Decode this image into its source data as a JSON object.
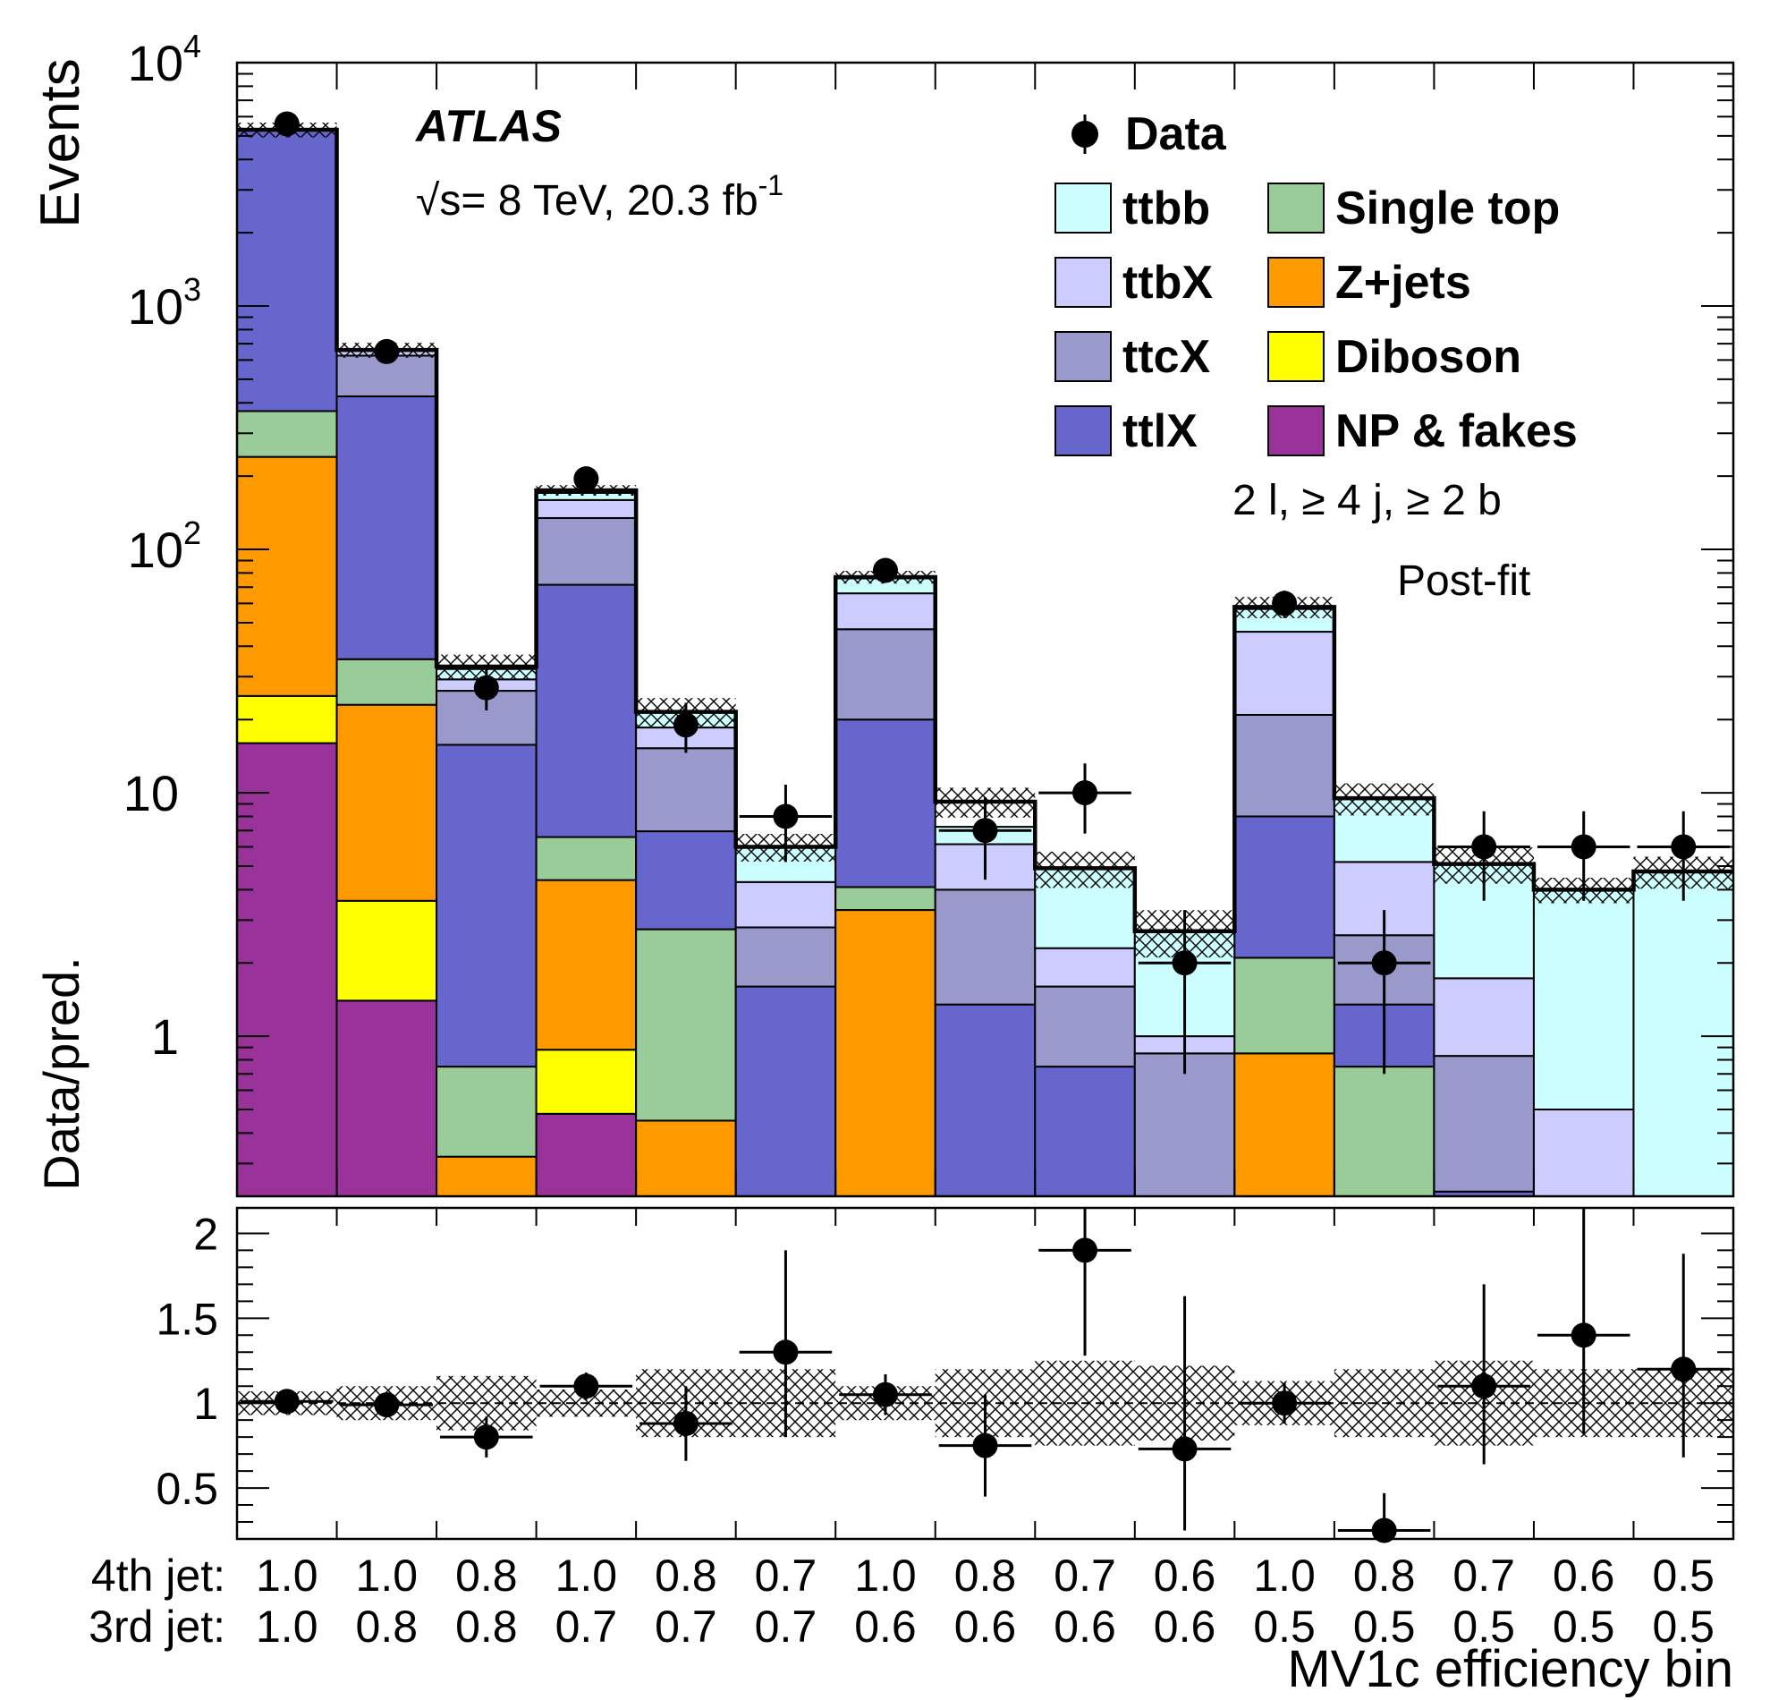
{
  "chart_data": {
    "type": "bar",
    "stacked": true,
    "experiment": "ATLAS",
    "energy_label": "√s= 8 TeV, 20.3 fb",
    "energy_sup": "-1",
    "selection": "2 l, ≥ 4 j, ≥ 2 b",
    "fit_label": "Post-fit",
    "ylabel": "Events",
    "ratio_ylabel": "Data/pred.",
    "xlabel": "MV1c efficiency bin",
    "yscale": "log",
    "ylim": [
      0.22,
      10000
    ],
    "ratio_ylim": [
      0.2,
      2.15
    ],
    "y_ticks": [
      {
        "value": 10000,
        "base": "10",
        "exp": "4"
      },
      {
        "value": 1000,
        "base": "10",
        "exp": "3"
      },
      {
        "value": 100,
        "base": "10",
        "exp": "2"
      },
      {
        "value": 10,
        "base": "10",
        "exp": ""
      },
      {
        "value": 1,
        "base": "1",
        "exp": ""
      }
    ],
    "ratio_ticks": [
      {
        "value": 0.5,
        "label": "0.5"
      },
      {
        "value": 1.0,
        "label": "1"
      },
      {
        "value": 1.5,
        "label": "1.5"
      },
      {
        "value": 2.0,
        "label": "2"
      }
    ],
    "row_labels": {
      "fourth": "4th jet:",
      "third": "3rd jet:"
    },
    "bins_4th": [
      "1.0",
      "1.0",
      "0.8",
      "1.0",
      "0.8",
      "0.7",
      "1.0",
      "0.8",
      "0.7",
      "0.6",
      "1.0",
      "0.8",
      "0.7",
      "0.6",
      "0.5"
    ],
    "bins_3rd": [
      "1.0",
      "0.8",
      "0.8",
      "0.7",
      "0.7",
      "0.7",
      "0.6",
      "0.6",
      "0.6",
      "0.6",
      "0.5",
      "0.5",
      "0.5",
      "0.5",
      "0.5"
    ],
    "series": [
      {
        "name": "NP & fakes",
        "color": "#993399",
        "values": [
          16,
          1.4,
          0,
          0.48,
          0,
          0,
          0,
          0,
          0,
          0,
          0,
          0,
          0,
          0,
          0
        ]
      },
      {
        "name": "Diboson",
        "color": "#ffff00",
        "values": [
          9,
          2.2,
          0,
          0.4,
          0,
          0,
          0,
          0,
          0,
          0,
          0,
          0,
          0,
          0,
          0
        ]
      },
      {
        "name": "Z+jets",
        "color": "#ff9900",
        "values": [
          215,
          19.4,
          0.32,
          3.5,
          0.45,
          0,
          3.3,
          0,
          0,
          0,
          0.85,
          0,
          0,
          0,
          0
        ]
      },
      {
        "name": "Single top",
        "color": "#99cc99",
        "values": [
          130,
          12.4,
          0.43,
          2.2,
          2.3,
          0,
          0.8,
          0,
          0,
          0,
          1.25,
          0.75,
          0,
          0,
          0
        ]
      },
      {
        "name": "ttlX",
        "color": "#6666cc",
        "values": [
          4900,
          390,
          15,
          65,
          4.2,
          1.6,
          15.9,
          1.35,
          0.75,
          0,
          5.9,
          0.6,
          0.23,
          0,
          0
        ]
      },
      {
        "name": "ttcX",
        "color": "#9999cc",
        "values": [
          0,
          200,
          10.5,
          63,
          8.3,
          1.2,
          27,
          2.65,
          0.85,
          0.85,
          12.9,
          1.25,
          0.6,
          0,
          0
        ]
      },
      {
        "name": "ttbX",
        "color": "#ccccff",
        "values": [
          0,
          35,
          3,
          25,
          3.3,
          1.5,
          19,
          2.15,
          0.7,
          0.15,
          25,
          2.6,
          0.9,
          0.5,
          0
        ]
      },
      {
        "name": "ttbb",
        "color": "#ccffff",
        "values": [
          0,
          5,
          3,
          11,
          2.9,
          1.7,
          10,
          1.1,
          2.6,
          1.7,
          11,
          4.3,
          3.4,
          3.5,
          4.75
        ]
      }
    ],
    "total": [
      5300,
      660,
      33,
      175,
      21.5,
      6,
      77,
      9.2,
      4.9,
      2.7,
      58,
      9.5,
      5.1,
      4.0,
      4.75
    ],
    "total_err_rel": [
      0.07,
      0.07,
      0.12,
      0.05,
      0.14,
      0.13,
      0.06,
      0.14,
      0.17,
      0.22,
      0.1,
      0.15,
      0.17,
      0.12,
      0.15
    ],
    "data": {
      "name": "Data",
      "values": [
        5600,
        650,
        27,
        195,
        19,
        8,
        82,
        7,
        10,
        2,
        60,
        2,
        6,
        6,
        6
      ],
      "err_lo": [
        75,
        26,
        5.2,
        14,
        4.4,
        2.8,
        9,
        2.6,
        3.2,
        1.3,
        7.7,
        1.3,
        2.4,
        2.4,
        2.4
      ],
      "err_hi": [
        75,
        26,
        5.2,
        14,
        4.4,
        2.8,
        9,
        2.6,
        3.2,
        1.3,
        7.7,
        1.3,
        2.4,
        2.4,
        2.4
      ]
    },
    "ratio": {
      "values": [
        1.01,
        0.99,
        0.8,
        1.1,
        0.88,
        1.3,
        1.05,
        0.75,
        1.9,
        0.73,
        1.0,
        0.25,
        1.1,
        1.4,
        1.2
      ],
      "err_lo": [
        0.02,
        0.04,
        0.12,
        0.08,
        0.22,
        0.5,
        0.12,
        0.3,
        0.62,
        0.48,
        0.12,
        0.18,
        0.46,
        0.58,
        0.52
      ],
      "err_hi": [
        0.02,
        0.04,
        0.12,
        0.08,
        0.22,
        0.6,
        0.12,
        0.3,
        0.7,
        0.9,
        0.12,
        0.22,
        0.6,
        0.8,
        0.68
      ],
      "band_rel": [
        0.07,
        0.1,
        0.16,
        0.08,
        0.2,
        0.2,
        0.1,
        0.2,
        0.25,
        0.22,
        0.13,
        0.2,
        0.25,
        0.2,
        0.2
      ]
    },
    "legend": [
      {
        "name": "ttbb",
        "color": "#ccffff"
      },
      {
        "name": "ttbX",
        "color": "#ccccff"
      },
      {
        "name": "ttcX",
        "color": "#9999cc"
      },
      {
        "name": "ttlX",
        "color": "#6666cc"
      },
      {
        "name": "Single top",
        "color": "#99cc99"
      },
      {
        "name": "Z+jets",
        "color": "#ff9900"
      },
      {
        "name": "Diboson",
        "color": "#ffff00"
      },
      {
        "name": "NP & fakes",
        "color": "#993399"
      }
    ],
    "legend_placement": "top-right"
  }
}
